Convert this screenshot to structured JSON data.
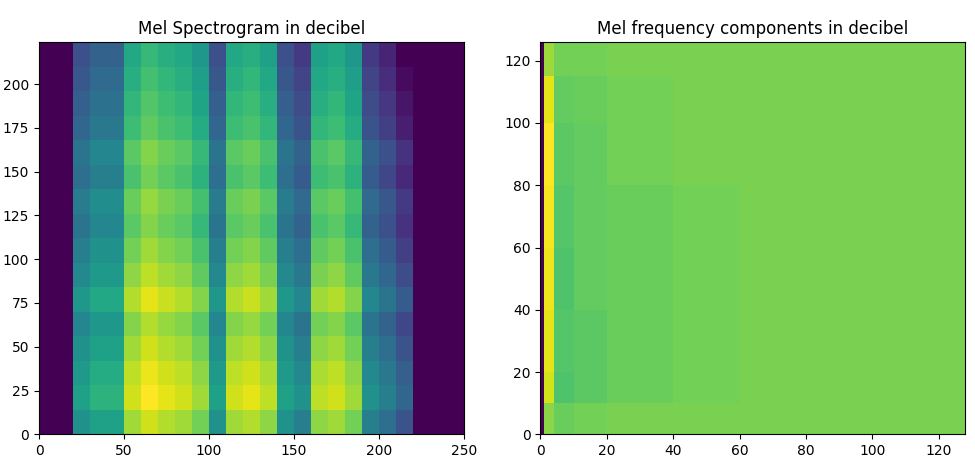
{
  "chart_data": [
    {
      "type": "heatmap",
      "title": "Mel Spectrogram in decibel",
      "xlim": [
        0,
        250
      ],
      "ylim": [
        0,
        224
      ],
      "xticks": [
        0,
        50,
        100,
        150,
        200,
        250
      ],
      "yticks": [
        0,
        25,
        50,
        75,
        100,
        125,
        150,
        175,
        200
      ],
      "x_edges": [
        0,
        10,
        20,
        30,
        40,
        50,
        60,
        70,
        80,
        90,
        100,
        110,
        120,
        130,
        140,
        150,
        160,
        170,
        180,
        190,
        200,
        210,
        220,
        230,
        240,
        250
      ],
      "y_edges": [
        0,
        14,
        28,
        42,
        56,
        70,
        84,
        98,
        112,
        126,
        140,
        154,
        168,
        182,
        196,
        210,
        224
      ],
      "cells": [
        [
          -80,
          -80,
          -45,
          -40,
          -40,
          -20,
          -15,
          -18,
          -20,
          -25,
          -45,
          -20,
          -18,
          -22,
          -45,
          -50,
          -22,
          -20,
          -25,
          -50,
          -55,
          -62,
          -80,
          -80,
          -80
        ],
        [
          -80,
          -80,
          -40,
          -35,
          -35,
          -15,
          -10,
          -13,
          -15,
          -20,
          -40,
          -15,
          -13,
          -17,
          -40,
          -45,
          -17,
          -15,
          -20,
          -45,
          -50,
          -57,
          -80,
          -80,
          -80
        ],
        [
          -80,
          -80,
          -42,
          -37,
          -37,
          -17,
          -12,
          -15,
          -17,
          -22,
          -42,
          -17,
          -15,
          -19,
          -42,
          -47,
          -19,
          -17,
          -22,
          -47,
          -52,
          -59,
          -80,
          -80,
          -80
        ],
        [
          -80,
          -80,
          -45,
          -40,
          -40,
          -20,
          -15,
          -18,
          -20,
          -25,
          -45,
          -20,
          -18,
          -22,
          -45,
          -50,
          -22,
          -20,
          -25,
          -50,
          -55,
          -62,
          -80,
          -80,
          -80
        ],
        [
          -80,
          -80,
          -48,
          -43,
          -43,
          -23,
          -18,
          -21,
          -23,
          -28,
          -48,
          -23,
          -21,
          -25,
          -48,
          -53,
          -25,
          -23,
          -28,
          -53,
          -58,
          -65,
          -80,
          -80,
          -80
        ],
        [
          -80,
          -80,
          -43,
          -38,
          -38,
          -18,
          -13,
          -16,
          -18,
          -23,
          -43,
          -18,
          -16,
          -20,
          -43,
          -48,
          -20,
          -18,
          -23,
          -48,
          -53,
          -60,
          -80,
          -80,
          -80
        ],
        [
          -80,
          -80,
          -47,
          -42,
          -42,
          -22,
          -17,
          -20,
          -22,
          -27,
          -47,
          -22,
          -20,
          -24,
          -47,
          -52,
          -24,
          -22,
          -27,
          -52,
          -57,
          -64,
          -80,
          -80,
          -80
        ],
        [
          -80,
          -80,
          -50,
          -45,
          -45,
          -25,
          -20,
          -23,
          -25,
          -30,
          -50,
          -25,
          -23,
          -27,
          -50,
          -55,
          -27,
          -25,
          -30,
          -55,
          -60,
          -67,
          -80,
          -80,
          -80
        ],
        [
          -80,
          -80,
          -53,
          -48,
          -48,
          -28,
          -23,
          -26,
          -28,
          -33,
          -53,
          -28,
          -26,
          -30,
          -53,
          -58,
          -30,
          -28,
          -33,
          -58,
          -63,
          -70,
          -80,
          -80,
          -80
        ],
        [
          -80,
          -80,
          -51,
          -46,
          -46,
          -26,
          -21,
          -24,
          -26,
          -31,
          -51,
          -26,
          -24,
          -28,
          -51,
          -56,
          -28,
          -26,
          -31,
          -56,
          -61,
          -68,
          -80,
          -80,
          -80
        ],
        [
          -80,
          -80,
          -55,
          -50,
          -50,
          -30,
          -25,
          -28,
          -30,
          -35,
          -55,
          -30,
          -28,
          -32,
          -55,
          -60,
          -32,
          -30,
          -35,
          -60,
          -65,
          -72,
          -80,
          -80,
          -80
        ],
        [
          -80,
          -80,
          -53,
          -48,
          -48,
          -28,
          -23,
          -26,
          -28,
          -33,
          -53,
          -28,
          -26,
          -30,
          -53,
          -58,
          -30,
          -28,
          -33,
          -58,
          -63,
          -70,
          -80,
          -80,
          -80
        ],
        [
          -80,
          -80,
          -57,
          -52,
          -52,
          -32,
          -27,
          -30,
          -32,
          -37,
          -57,
          -32,
          -30,
          -34,
          -57,
          -62,
          -34,
          -32,
          -37,
          -62,
          -67,
          -74,
          -80,
          -80,
          -80
        ],
        [
          -80,
          -80,
          -59,
          -54,
          -54,
          -34,
          -29,
          -32,
          -34,
          -39,
          -59,
          -34,
          -32,
          -36,
          -59,
          -64,
          -36,
          -34,
          -39,
          -64,
          -69,
          -76,
          -80,
          -80,
          -80
        ],
        [
          -80,
          -80,
          -61,
          -56,
          -56,
          -36,
          -31,
          -34,
          -36,
          -41,
          -61,
          -36,
          -34,
          -38,
          -61,
          -66,
          -38,
          -36,
          -41,
          -66,
          -71,
          -78,
          -80,
          -80,
          -80
        ],
        [
          -80,
          -80,
          -63,
          -58,
          -58,
          -38,
          -33,
          -36,
          -38,
          -43,
          -63,
          -38,
          -36,
          -40,
          -63,
          -68,
          -40,
          -38,
          -43,
          -68,
          -73,
          -80,
          -80,
          -80,
          -80
        ]
      ]
    },
    {
      "type": "heatmap",
      "title": "Mel frequency components in decibel",
      "xlim": [
        0,
        128
      ],
      "ylim": [
        0,
        126
      ],
      "xticks": [
        0,
        20,
        40,
        60,
        80,
        100,
        120
      ],
      "yticks": [
        0,
        20,
        40,
        60,
        80,
        100,
        120
      ],
      "x_edges": [
        0,
        1,
        4,
        10,
        20,
        40,
        60,
        80,
        100,
        128
      ],
      "y_edges": [
        0,
        10,
        20,
        40,
        60,
        80,
        100,
        115,
        126
      ],
      "cells": [
        [
          -60,
          2,
          -2,
          -1,
          0,
          0,
          0,
          0,
          0
        ],
        [
          -60,
          10,
          -6,
          -4,
          -2,
          -1,
          0,
          0,
          0
        ],
        [
          -60,
          12,
          -5,
          -4,
          -2,
          -1,
          0,
          0,
          0
        ],
        [
          -60,
          13,
          -6,
          -3,
          -2,
          -1,
          0,
          0,
          0
        ],
        [
          -60,
          14,
          -5,
          -3,
          -2,
          -1,
          0,
          0,
          0
        ],
        [
          -60,
          15,
          -4,
          -3,
          -1,
          0,
          0,
          0,
          0
        ],
        [
          -60,
          12,
          -3,
          -2,
          -1,
          0,
          0,
          0,
          0
        ],
        [
          -60,
          4,
          -1,
          -1,
          0,
          0,
          0,
          0,
          0
        ]
      ]
    }
  ]
}
